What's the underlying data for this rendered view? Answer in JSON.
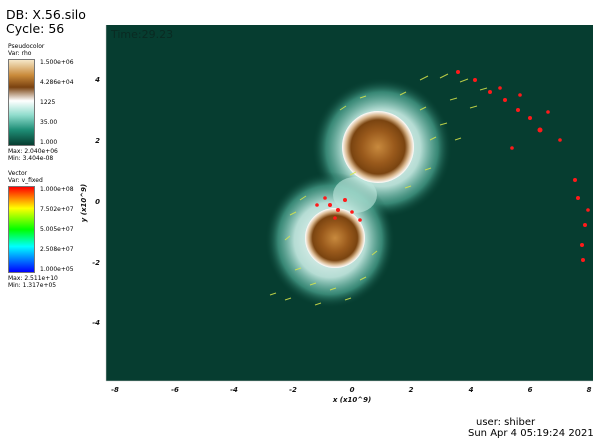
{
  "header": {
    "db": "DB: X.56.silo",
    "cycle": "Cycle: 56",
    "time": "Time:29.23"
  },
  "legend_pseudocolor": {
    "title": "Pseudocolor",
    "var": "Var: rho",
    "ticks": [
      "1.500e+06",
      "4.286e+04",
      "1225",
      "35.00",
      "1.000"
    ],
    "max": "Max: 2.040e+06",
    "min": "Min: 3.404e-08"
  },
  "legend_vector": {
    "title": "Vector",
    "var": "Var: v_fixed",
    "ticks": [
      "1.000e+08",
      "7.502e+07",
      "5.005e+07",
      "2.508e+07",
      "1.000e+05"
    ],
    "max": "Max: 2.511e+10",
    "min": "Min: 1.317e+05"
  },
  "plot": {
    "xlabel": "x  (x10^9)",
    "ylabel": "y  (x10^9)",
    "xticks": [
      "-8",
      "-6",
      "-4",
      "-2",
      "0",
      "2",
      "4",
      "6",
      "8"
    ],
    "yticks": [
      "4",
      "2",
      "0",
      "-2",
      "-4"
    ],
    "background": "#063d30"
  },
  "footer": {
    "user": "user: shiber",
    "date": "Sun Apr  4 05:19:24 2021"
  }
}
